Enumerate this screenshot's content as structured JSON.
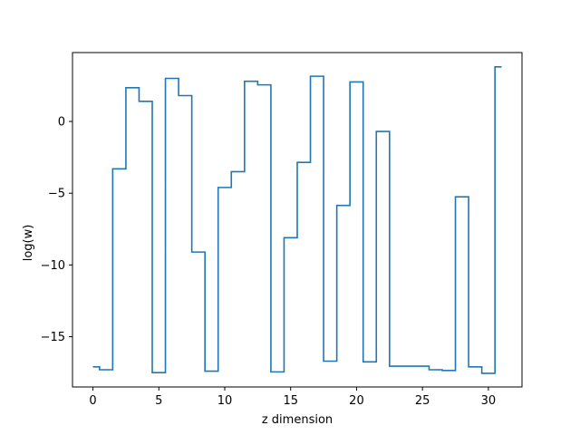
{
  "chart_data": {
    "type": "line",
    "drawstyle": "steps-mid",
    "xlabel": "z dimension",
    "ylabel": "log(w)",
    "xlim": [
      -1.55,
      32.55
    ],
    "ylim": [
      -18.5,
      4.8
    ],
    "xticks": [
      0,
      5,
      10,
      15,
      20,
      25,
      30
    ],
    "yticks": [
      -15,
      -10,
      -5,
      0
    ],
    "grid": false,
    "legend": "none",
    "series": [
      {
        "color": "#1f77b4",
        "x": [
          0,
          1,
          2,
          3,
          4,
          5,
          6,
          7,
          8,
          9,
          10,
          11,
          12,
          13,
          14,
          15,
          16,
          17,
          18,
          19,
          20,
          21,
          22,
          23,
          24,
          25,
          26,
          27,
          28,
          29,
          30,
          31
        ],
        "values": [
          -17.1,
          -17.3,
          -3.3,
          2.35,
          1.4,
          -17.5,
          3.0,
          1.8,
          -9.1,
          -17.4,
          -4.6,
          -3.5,
          2.8,
          2.55,
          -17.45,
          -8.1,
          -2.85,
          3.15,
          -16.7,
          -5.85,
          2.75,
          -16.75,
          -0.7,
          -17.05,
          -17.05,
          -17.05,
          -17.3,
          -17.35,
          -5.25,
          -17.1,
          -17.55,
          3.8
        ]
      }
    ]
  }
}
